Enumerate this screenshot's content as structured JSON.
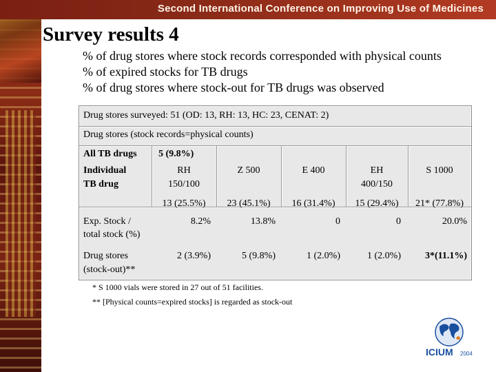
{
  "header": {
    "conference": "Second International Conference on Improving Use of Medicines"
  },
  "title": "Survey results 4",
  "bullets": [
    "% of drug stores where stock records corresponded with physical counts",
    "% of expired stocks for TB drugs",
    "% of drug stores where stock-out for TB drugs was observed"
  ],
  "table": {
    "surveyed": "Drug stores surveyed:   51 (OD: 13, RH: 13, HC: 23, CENAT: 2)",
    "records_label": "Drug stores (stock records=physical counts)",
    "all_tb_label": "All TB drugs",
    "all_tb_value": "5 (9.8%)",
    "individual_label_1": "Individual",
    "individual_label_2": "TB drug",
    "drugs": [
      {
        "name1": "RH",
        "name2": "150/100"
      },
      {
        "name1": "Z 500",
        "name2": ""
      },
      {
        "name1": "E 400",
        "name2": ""
      },
      {
        "name1": "EH",
        "name2": "400/150"
      },
      {
        "name1": "S 1000",
        "name2": ""
      }
    ],
    "records_values": [
      "13 (25.5%)",
      "23 (45.1%)",
      "16 (31.4%)",
      "15 (29.4%)",
      "21* (77.8%)"
    ],
    "exp_label_1": "Exp. Stock /",
    "exp_label_2": "total stock (%)",
    "exp_values": [
      "8.2%",
      "13.8%",
      "0",
      "0",
      "20.0%"
    ],
    "so_label_1": "Drug stores",
    "so_label_2": "(stock-out)**",
    "so_values": [
      "2 (3.9%)",
      "5 (9.8%)",
      "1 (2.0%)",
      "1 (2.0%)",
      "3*(11.1%)"
    ]
  },
  "footnotes": [
    "*   S 1000 vials were stored in 27 out of 51 facilities.",
    "** [Physical counts=expired stocks] is regarded as stock-out"
  ],
  "logo": {
    "text": "ICIUM",
    "year": "2004"
  },
  "colors": {
    "header": "#8a2a18",
    "table_bg": "#e8e8e8",
    "logo_blue": "#1a4fa0",
    "logo_orange": "#e07a1a"
  }
}
